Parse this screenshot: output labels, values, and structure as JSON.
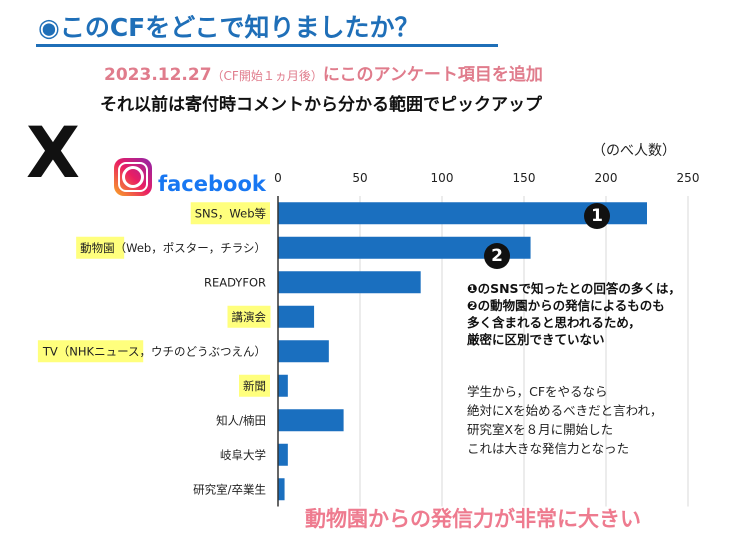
{
  "header": {
    "title": "◉このCFをどこで知りましたか？",
    "date": "2023.12.27",
    "date_note": "（CF開始１ヵ月後）",
    "added": "にこのアンケート項目を追加",
    "subtitle": "それ以前は寄付時コメントから分かる範囲でピックアップ"
  },
  "logos": {
    "x": "X",
    "instagram": "Instagram",
    "facebook": "facebook"
  },
  "markers": {
    "m1": "1",
    "m2": "2"
  },
  "notes": {
    "note1": [
      "❶のSNSで知ったとの回答の多くは，",
      "❷の動物園からの発信によるものも",
      "多く含まれると思われるため，",
      "厳密に区別できていない"
    ],
    "note2": [
      "学生から，CFをやるなら",
      "絶対にXを始めるべきだと言われ，",
      "研究室Xを８月に開始した",
      "これは大きな発信力となった"
    ]
  },
  "conclusion": "動物園からの発信力が非常に大きい",
  "chart_data": {
    "type": "bar",
    "orientation": "horizontal",
    "unit_label": "（のべ人数）",
    "categories": [
      "SNS，Web等",
      "動物園（Web，ポスター，チラシ）",
      "READYFOR",
      "講演会",
      "TV（NHKニュース，ウチのどうぶつえん）",
      "新聞",
      "知人/楠田",
      "岐阜大学",
      "研究室/卒業生"
    ],
    "highlighted": [
      true,
      true,
      false,
      true,
      true,
      true,
      false,
      false,
      false
    ],
    "values": [
      225,
      154,
      87,
      22,
      31,
      6,
      40,
      6,
      4
    ],
    "xlim": [
      0,
      250
    ],
    "xticks": [
      0,
      50,
      100,
      150,
      200,
      250
    ],
    "bar_color": "#1a6fbf",
    "highlight_color": "#ffff66",
    "grid": true
  }
}
